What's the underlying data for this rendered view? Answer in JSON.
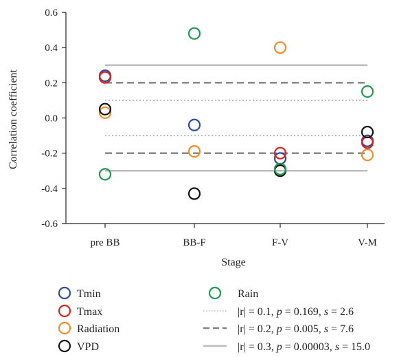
{
  "chart_data": {
    "type": "scatter",
    "xlabel": "Stage",
    "ylabel": "Correlation coefficient",
    "categories": [
      "pre BB",
      "BB-F",
      "F-V",
      "V-M"
    ],
    "ylim": [
      -0.6,
      0.6
    ],
    "y_ticks": [
      "0.6",
      "0.4",
      "0.2",
      "0.0",
      "-0.2",
      "-0.4",
      "-0.6"
    ],
    "y_tick_values": [
      0.6,
      0.4,
      0.2,
      0.0,
      -0.2,
      -0.4,
      -0.6
    ],
    "grid": false,
    "series": [
      {
        "name": "Tmin",
        "color": "#2b4aa0",
        "values": [
          0.24,
          -0.04,
          -0.23,
          -0.13
        ]
      },
      {
        "name": "Tmax",
        "color": "#e0201e",
        "values": [
          0.23,
          null,
          -0.2,
          -0.14
        ]
      },
      {
        "name": "Radiation",
        "color": "#f28c28",
        "values": [
          0.03,
          -0.19,
          0.4,
          -0.21
        ]
      },
      {
        "name": "VPD",
        "color": "#111111",
        "values": [
          0.05,
          -0.43,
          -0.3,
          -0.08
        ]
      },
      {
        "name": "Rain",
        "color": "#1f9a4e",
        "values": [
          -0.32,
          0.48,
          -0.29,
          0.15
        ]
      }
    ],
    "thresholds": [
      {
        "value": 0.1,
        "style": "dotted",
        "color": "#b8b8b8",
        "label_r": "|r| = 0.1, ",
        "label_p": "p",
        "label_p_val": " = 0.169, ",
        "label_s": "s",
        "label_s_val": " = 2.6"
      },
      {
        "value": 0.2,
        "style": "dashed",
        "color": "#808080",
        "label_r": "|r| = 0.2, ",
        "label_p": "p",
        "label_p_val": " = 0.005, ",
        "label_s": "s",
        "label_s_val": " = 7.6"
      },
      {
        "value": 0.3,
        "style": "solid",
        "color": "#bcbcbc",
        "label_r": "|r| = 0.3, ",
        "label_p": "p",
        "label_p_val": " = 0.00003, ",
        "label_s": "s",
        "label_s_val": " = 15.0"
      }
    ],
    "legend_position": "bottom"
  }
}
